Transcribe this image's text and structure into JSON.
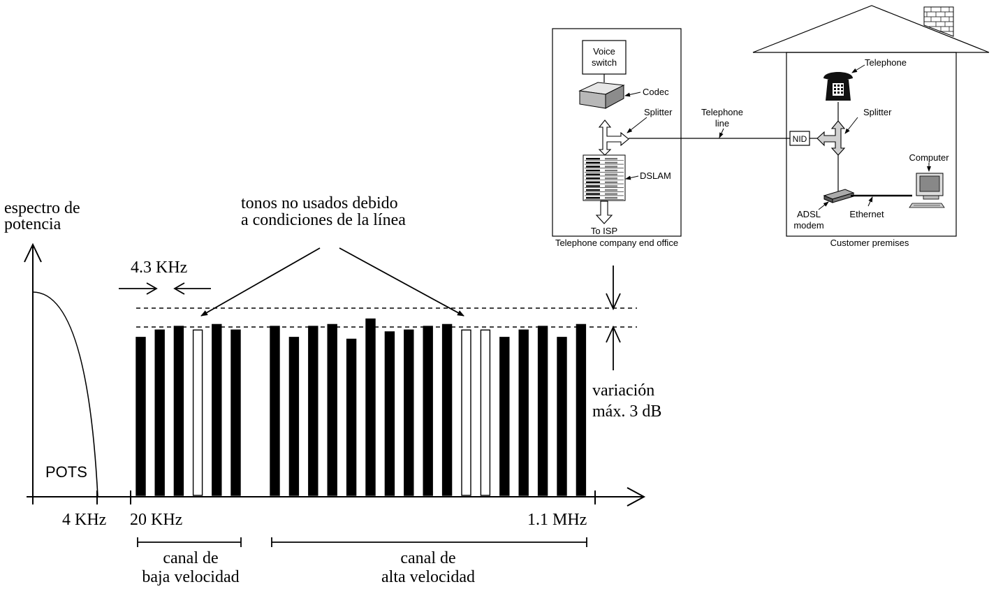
{
  "spectrum": {
    "y_axis_label": [
      "espectro de",
      "potencia"
    ],
    "unused_tones_label": [
      "tonos no usados debido",
      "a condiciones de la línea"
    ],
    "tone_spacing_label": "4.3 KHz",
    "variation_label": [
      "variación",
      "máx. 3 dB"
    ],
    "pots_label": "POTS",
    "freq_ticks": [
      "4 KHz",
      "20 KHz",
      "1.1 MHz"
    ],
    "low_channel_label": [
      "canal de",
      "baja velocidad"
    ],
    "high_channel_label": [
      "canal de",
      "alta velocidad"
    ],
    "low_tones": [
      {
        "level": 0.86,
        "used": true
      },
      {
        "level": 0.9,
        "used": true
      },
      {
        "level": 0.92,
        "used": true
      },
      {
        "level": 0.9,
        "used": false
      },
      {
        "level": 0.93,
        "used": true
      },
      {
        "level": 0.9,
        "used": true
      }
    ],
    "high_tones": [
      {
        "level": 0.92,
        "used": true
      },
      {
        "level": 0.86,
        "used": true
      },
      {
        "level": 0.92,
        "used": true
      },
      {
        "level": 0.93,
        "used": true
      },
      {
        "level": 0.85,
        "used": true
      },
      {
        "level": 0.96,
        "used": true
      },
      {
        "level": 0.89,
        "used": true
      },
      {
        "level": 0.9,
        "used": true
      },
      {
        "level": 0.92,
        "used": true
      },
      {
        "level": 0.93,
        "used": true
      },
      {
        "level": 0.9,
        "used": false
      },
      {
        "level": 0.9,
        "used": false
      },
      {
        "level": 0.86,
        "used": true
      },
      {
        "level": 0.9,
        "used": true
      },
      {
        "level": 0.92,
        "used": true
      },
      {
        "level": 0.86,
        "used": true
      },
      {
        "level": 0.93,
        "used": true
      }
    ]
  },
  "network": {
    "end_office_label": "Telephone company end office",
    "premises_label": "Customer premises",
    "voice_switch": [
      "Voice",
      "switch"
    ],
    "codec": "Codec",
    "splitter_office": "Splitter",
    "dslam": "DSLAM",
    "to_isp": "To ISP",
    "telephone_line": [
      "Telephone",
      "line"
    ],
    "nid": "NID",
    "telephone": "Telephone",
    "splitter_home": "Splitter",
    "computer": "Computer",
    "adsl_modem": [
      "ADSL",
      "modem"
    ],
    "ethernet": "Ethernet"
  }
}
